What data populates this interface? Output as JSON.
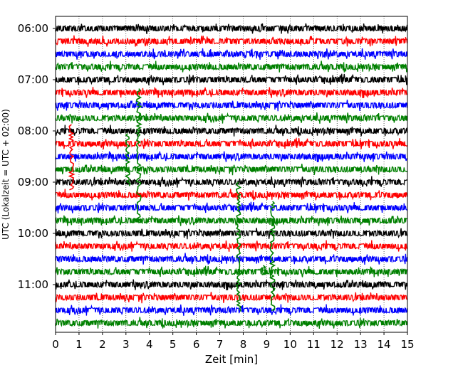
{
  "chart_data": {
    "type": "line",
    "title": "",
    "xlabel": "Zeit  [min]",
    "ylabel": "UTC (Lokalzeit = UTC + 02:00)",
    "xlim": [
      0,
      15
    ],
    "x_ticks": [
      0,
      1,
      2,
      3,
      4,
      5,
      6,
      7,
      8,
      9,
      10,
      11,
      12,
      13,
      14,
      15
    ],
    "x_tick_labels": [
      "0",
      "1",
      "2",
      "3",
      "4",
      "5",
      "6",
      "7",
      "8",
      "9",
      "10",
      "11",
      "12",
      "13",
      "14",
      "15"
    ],
    "y_tick_labels": [
      "06:00",
      "07:00",
      "08:00",
      "09:00",
      "10:00",
      "11:00"
    ],
    "y_tick_rows": [
      0,
      4,
      8,
      12,
      16,
      20
    ],
    "grid": "vertical dotted",
    "row_interval_min": 15,
    "trace_colors": [
      "#000000",
      "#ff0000",
      "#0000ff",
      "#008000"
    ],
    "rows": [
      {
        "start": "06:00",
        "color": "#000000"
      },
      {
        "start": "06:15",
        "color": "#ff0000"
      },
      {
        "start": "06:30",
        "color": "#0000ff"
      },
      {
        "start": "06:45",
        "color": "#008000"
      },
      {
        "start": "07:00",
        "color": "#000000"
      },
      {
        "start": "07:15",
        "color": "#ff0000"
      },
      {
        "start": "07:30",
        "color": "#0000ff"
      },
      {
        "start": "07:45",
        "color": "#008000"
      },
      {
        "start": "08:00",
        "color": "#000000"
      },
      {
        "start": "08:15",
        "color": "#ff0000"
      },
      {
        "start": "08:30",
        "color": "#0000ff"
      },
      {
        "start": "08:45",
        "color": "#008000"
      },
      {
        "start": "09:00",
        "color": "#000000"
      },
      {
        "start": "09:15",
        "color": "#ff0000"
      },
      {
        "start": "09:30",
        "color": "#0000ff"
      },
      {
        "start": "09:45",
        "color": "#008000"
      },
      {
        "start": "10:00",
        "color": "#000000"
      },
      {
        "start": "10:15",
        "color": "#ff0000"
      },
      {
        "start": "10:30",
        "color": "#0000ff"
      },
      {
        "start": "10:45",
        "color": "#008000"
      },
      {
        "start": "11:00",
        "color": "#000000"
      },
      {
        "start": "11:15",
        "color": "#ff0000"
      },
      {
        "start": "11:30",
        "color": "#0000ff"
      },
      {
        "start": "11:45",
        "color": "#008000"
      }
    ],
    "spikes": [
      {
        "row": 9,
        "x": 0.68,
        "rows_up": 1.5,
        "rows_down": 3.6,
        "color": "#ff0000"
      },
      {
        "row": 11,
        "x": 3.08,
        "rows_up": 2.8,
        "rows_down": 1.3,
        "color": "#008000"
      },
      {
        "row": 11,
        "x": 3.55,
        "rows_up": 6.3,
        "rows_down": 4.0,
        "color": "#008000"
      },
      {
        "row": 19,
        "x": 7.8,
        "rows_up": 7.0,
        "rows_down": 3.1,
        "color": "#008000"
      },
      {
        "row": 19,
        "x": 9.25,
        "rows_up": 5.5,
        "rows_down": 3.0,
        "color": "#008000"
      },
      {
        "row": 19,
        "x": 8.85,
        "rows_up": 0.5,
        "rows_down": 0.2,
        "color": "#008000"
      }
    ]
  }
}
